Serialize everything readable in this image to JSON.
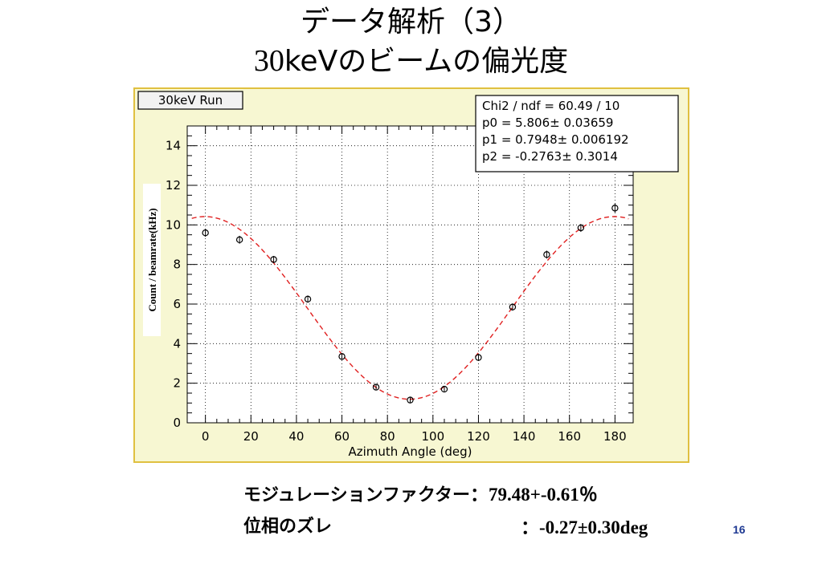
{
  "slide": {
    "title_line1": "データ解析（3）",
    "title_line2_prefix": "30",
    "title_line2_rest": "keVのビームの偏光度",
    "page_number": "16"
  },
  "results": {
    "modulation_label": "モジュレーションファクター",
    "modulation_value": "：79.48+-0.61％",
    "phase_label": "位相のズレ",
    "phase_value": "：-0.27±0.30deg"
  },
  "colors": {
    "panel_bg": "#f7f7d2",
    "panel_border": "#e0c040",
    "fit": "#e02020"
  },
  "chart_data": {
    "type": "scatter",
    "title": "30keV Run",
    "xlabel": "Azimuth Angle (deg)",
    "ylabel": "Count / beamrate(kHz)",
    "xlim": [
      -8,
      188
    ],
    "ylim": [
      0,
      15
    ],
    "xticks": [
      0,
      20,
      40,
      60,
      80,
      100,
      120,
      140,
      160,
      180
    ],
    "yticks": [
      0,
      2,
      4,
      6,
      8,
      10,
      12,
      14
    ],
    "grid": true,
    "series": [
      {
        "x": [
          0,
          15,
          30,
          45,
          60,
          75,
          90,
          105,
          120,
          135,
          150,
          165,
          180
        ],
        "y": [
          9.6,
          9.25,
          8.25,
          6.25,
          3.35,
          1.8,
          1.15,
          1.7,
          3.3,
          5.85,
          8.5,
          9.85,
          10.85
        ],
        "err": [
          0.2,
          0.2,
          0.18,
          0.18,
          0.15,
          0.12,
          0.12,
          0.12,
          0.15,
          0.18,
          0.2,
          0.2,
          0.22
        ]
      }
    ],
    "fit": {
      "style": "dashed",
      "stats": [
        "Chi2 / ndf = 60.49 / 10",
        "p0       = 5.806± 0.03659",
        "p1       = 0.7948± 0.006192",
        "p2       = -0.2763± 0.3014"
      ],
      "p0": 5.806,
      "p1": 0.7948,
      "p2": -0.2763
    }
  }
}
